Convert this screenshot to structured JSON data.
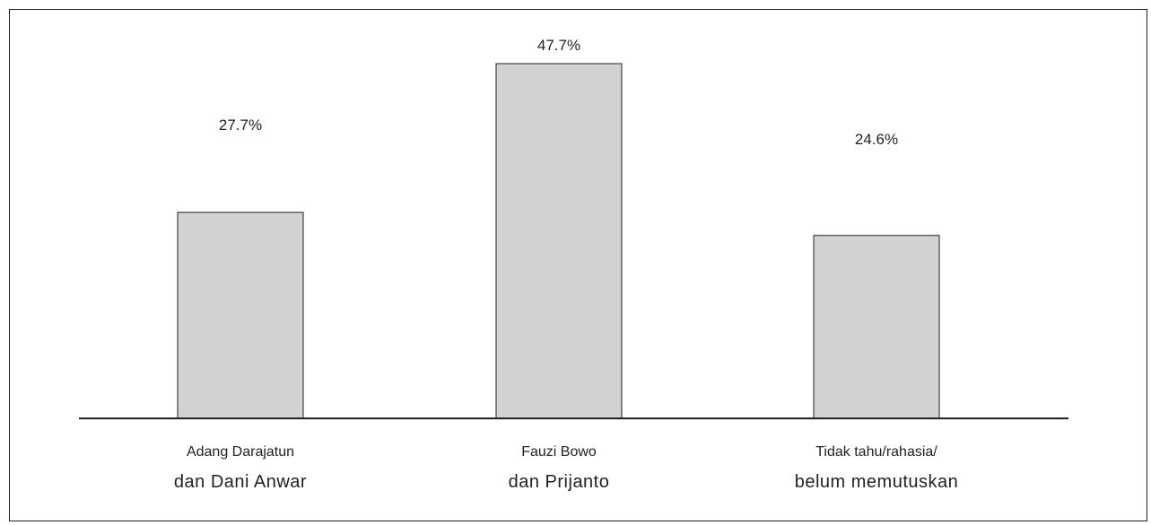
{
  "chart_data": {
    "type": "bar",
    "title": "",
    "xlabel": "",
    "ylabel": "",
    "ylim": [
      0,
      50
    ],
    "grid": false,
    "categories": [
      [
        "Adang Darajatun",
        "dan Dani Anwar"
      ],
      [
        "Fauzi Bowo",
        "dan Prijanto"
      ],
      [
        "Tidak tahu/rahasia/",
        "belum memutuskan"
      ]
    ],
    "values": [
      27.7,
      47.7,
      24.6
    ],
    "value_labels": [
      "27.7%",
      "47.7%",
      "24.6%"
    ],
    "colors": {
      "bar_fill": "#d1d2d4",
      "bar_stroke": "#231f20",
      "axis": "#231f20",
      "text": "#231f20"
    }
  }
}
